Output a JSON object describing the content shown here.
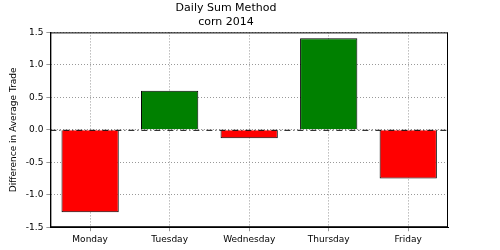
{
  "chart_data": {
    "type": "bar",
    "title": "Daily Sum Method",
    "subtitle": "corn 2014",
    "y_label": "Difference in Average Trade",
    "categories": [
      "Monday",
      "Tuesday",
      "Wednesday",
      "Thursday",
      "Friday"
    ],
    "values": [
      -1.27,
      0.6,
      -0.13,
      1.41,
      -0.75
    ],
    "colors": [
      "#ff0000",
      "#008000",
      "#ff0000",
      "#008000",
      "#ff0000"
    ],
    "ylim": [
      -1.5,
      1.5
    ],
    "yticks": [
      -1.5,
      {
        "value": -1,
        "label": "-1.0"
      },
      -0.5,
      {
        "value": 0,
        "label": "0.0"
      },
      0.5,
      {
        "value": 1,
        "label": "1.0"
      },
      1.5
    ],
    "grid": true
  }
}
